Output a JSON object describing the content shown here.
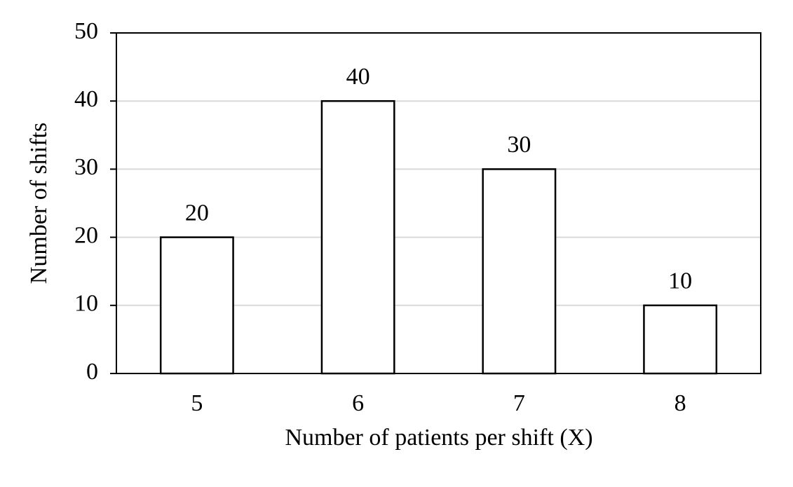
{
  "chart_data": {
    "type": "bar",
    "x_label": "Number of patients per shift (X)",
    "y_label": "Number of shifts",
    "categories": [
      "5",
      "6",
      "7",
      "8"
    ],
    "values": [
      20,
      40,
      30,
      10
    ],
    "color": "#ffffff",
    "ylim": [
      0,
      50
    ],
    "yticks": [
      0,
      10,
      20,
      30,
      40,
      50
    ],
    "grid": true
  }
}
